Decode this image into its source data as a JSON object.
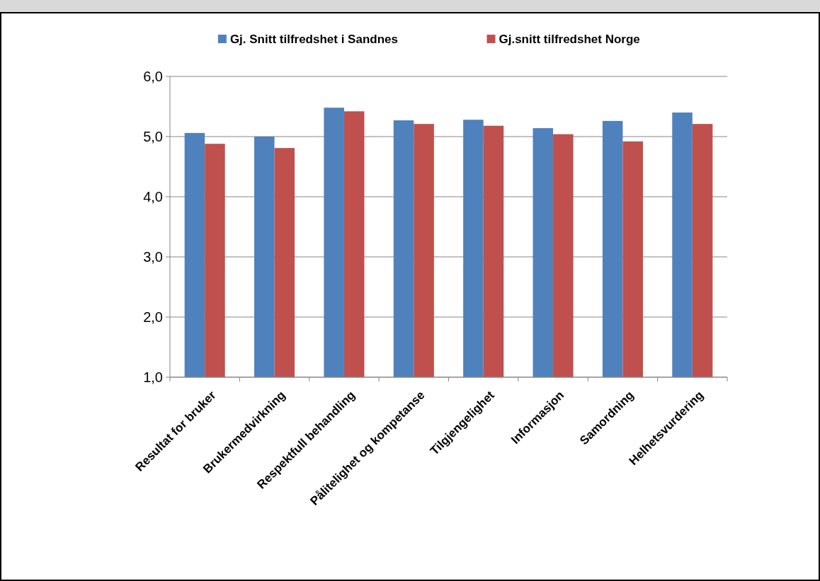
{
  "chart_data": {
    "type": "bar",
    "categories": [
      "Resultat for bruker",
      "Brukermedvirkning",
      "Respektfull behandling",
      "Pålitelighet og kompetanse",
      "Tilgjengelighet",
      "Informasjon",
      "Samordning",
      "Helhetsvurdering"
    ],
    "series": [
      {
        "name": "Gj. Snitt tilfredshet i Sandnes",
        "color": "#4f81bd",
        "values": [
          5.06,
          5.0,
          5.48,
          5.27,
          5.28,
          5.14,
          5.26,
          5.4
        ]
      },
      {
        "name": "Gj.snitt tilfredshet Norge",
        "color": "#c0504d",
        "values": [
          4.88,
          4.81,
          5.42,
          5.21,
          5.18,
          5.04,
          4.92,
          5.21
        ]
      }
    ],
    "ylim": [
      1,
      6
    ],
    "yticks": [
      {
        "value": 1,
        "label": "1,0"
      },
      {
        "value": 2,
        "label": "2,0"
      },
      {
        "value": 3,
        "label": "3,0"
      },
      {
        "value": 4,
        "label": "4,0"
      },
      {
        "value": 5,
        "label": "5,0"
      },
      {
        "value": 6,
        "label": "6,0"
      }
    ],
    "grid": "y",
    "legend": "top"
  }
}
